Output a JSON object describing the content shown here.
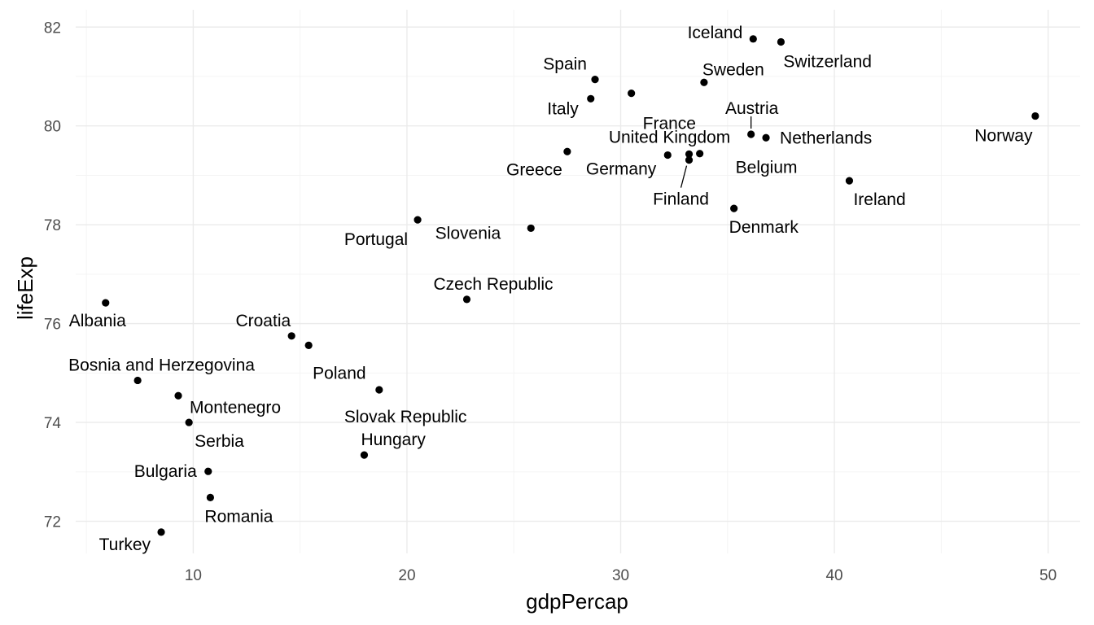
{
  "chart_data": {
    "type": "scatter",
    "title": "",
    "xlabel": "gdpPercap",
    "ylabel": "lifeExp",
    "xlim": [
      4.5,
      51.5
    ],
    "ylim": [
      71.35,
      82.35
    ],
    "x_ticks": [
      10,
      20,
      30,
      40,
      50
    ],
    "y_ticks": [
      72,
      74,
      76,
      78,
      80,
      82
    ],
    "x_tick_labels": [
      "10",
      "20",
      "30",
      "40",
      "50"
    ],
    "y_tick_labels": [
      "72",
      "74",
      "76",
      "78",
      "80",
      "82"
    ],
    "grid": true,
    "legend": "none",
    "points": [
      {
        "label": "Iceland",
        "x": 36.2,
        "y": 81.76
      },
      {
        "label": "Switzerland",
        "x": 37.5,
        "y": 81.7
      },
      {
        "label": "Spain",
        "x": 28.8,
        "y": 80.94
      },
      {
        "label": "Sweden",
        "x": 33.9,
        "y": 80.88
      },
      {
        "label": "France",
        "x": 30.5,
        "y": 80.66
      },
      {
        "label": "Italy",
        "x": 28.6,
        "y": 80.55
      },
      {
        "label": "Austria",
        "x": 36.1,
        "y": 79.83
      },
      {
        "label": "Netherlands",
        "x": 36.8,
        "y": 79.76
      },
      {
        "label": "Norway",
        "x": 49.4,
        "y": 80.2
      },
      {
        "label": "Greece",
        "x": 27.5,
        "y": 79.48
      },
      {
        "label": "United Kingdom",
        "x": 33.2,
        "y": 79.43
      },
      {
        "label": "Germany",
        "x": 32.2,
        "y": 79.41
      },
      {
        "label": "Belgium",
        "x": 33.7,
        "y": 79.44
      },
      {
        "label": "Finland",
        "x": 33.2,
        "y": 79.31
      },
      {
        "label": "Ireland",
        "x": 40.7,
        "y": 78.89
      },
      {
        "label": "Denmark",
        "x": 35.3,
        "y": 78.33
      },
      {
        "label": "Portugal",
        "x": 20.5,
        "y": 78.1
      },
      {
        "label": "Slovenia",
        "x": 25.8,
        "y": 77.93
      },
      {
        "label": "Czech Republic",
        "x": 22.8,
        "y": 76.49
      },
      {
        "label": "Albania",
        "x": 5.9,
        "y": 76.42
      },
      {
        "label": "Croatia",
        "x": 14.6,
        "y": 75.75
      },
      {
        "label": "Poland",
        "x": 15.4,
        "y": 75.56
      },
      {
        "label": "Bosnia and Herzegovina",
        "x": 7.4,
        "y": 74.85
      },
      {
        "label": "Slovak Republic",
        "x": 18.7,
        "y": 74.66
      },
      {
        "label": "Montenegro",
        "x": 9.3,
        "y": 74.54
      },
      {
        "label": "Serbia",
        "x": 9.8,
        "y": 74.0
      },
      {
        "label": "Hungary",
        "x": 18.0,
        "y": 73.34
      },
      {
        "label": "Bulgaria",
        "x": 10.7,
        "y": 73.01
      },
      {
        "label": "Romania",
        "x": 10.8,
        "y": 72.48
      },
      {
        "label": "Turkey",
        "x": 8.5,
        "y": 71.78
      }
    ]
  }
}
